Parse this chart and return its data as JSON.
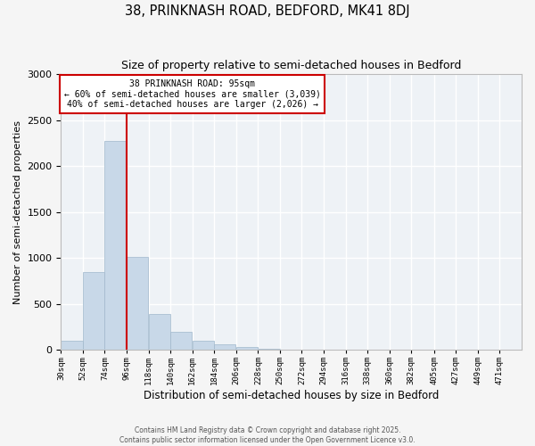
{
  "title": "38, PRINKNASH ROAD, BEDFORD, MK41 8DJ",
  "subtitle": "Size of property relative to semi-detached houses in Bedford",
  "bar_values": [
    100,
    850,
    2270,
    1010,
    390,
    200,
    100,
    65,
    35,
    10,
    5,
    2,
    1,
    0,
    0,
    0,
    0,
    0,
    0,
    0,
    1
  ],
  "bin_edges": [
    30,
    52,
    74,
    96,
    118,
    140,
    162,
    184,
    206,
    228,
    250,
    272,
    294,
    316,
    338,
    360,
    382,
    405,
    427,
    449,
    471,
    493
  ],
  "bin_labels": [
    "30sqm",
    "52sqm",
    "74sqm",
    "96sqm",
    "118sqm",
    "140sqm",
    "162sqm",
    "184sqm",
    "206sqm",
    "228sqm",
    "250sqm",
    "272sqm",
    "294sqm",
    "316sqm",
    "338sqm",
    "360sqm",
    "382sqm",
    "405sqm",
    "427sqm",
    "449sqm",
    "471sqm"
  ],
  "bar_color": "#c8d8e8",
  "bar_edge_color": "#a0b8cc",
  "property_line_x": 96,
  "property_line_color": "#cc0000",
  "annotation_title": "38 PRINKNASH ROAD: 95sqm",
  "annotation_line1": "← 60% of semi-detached houses are smaller (3,039)",
  "annotation_line2": "40% of semi-detached houses are larger (2,026) →",
  "annotation_box_color": "#ffffff",
  "annotation_box_edge": "#cc0000",
  "xlabel": "Distribution of semi-detached houses by size in Bedford",
  "ylabel": "Number of semi-detached properties",
  "ylim": [
    0,
    3000
  ],
  "yticks": [
    0,
    500,
    1000,
    1500,
    2000,
    2500,
    3000
  ],
  "bg_color": "#eef2f6",
  "grid_color": "#ffffff",
  "footer1": "Contains HM Land Registry data © Crown copyright and database right 2025.",
  "footer2": "Contains public sector information licensed under the Open Government Licence v3.0."
}
